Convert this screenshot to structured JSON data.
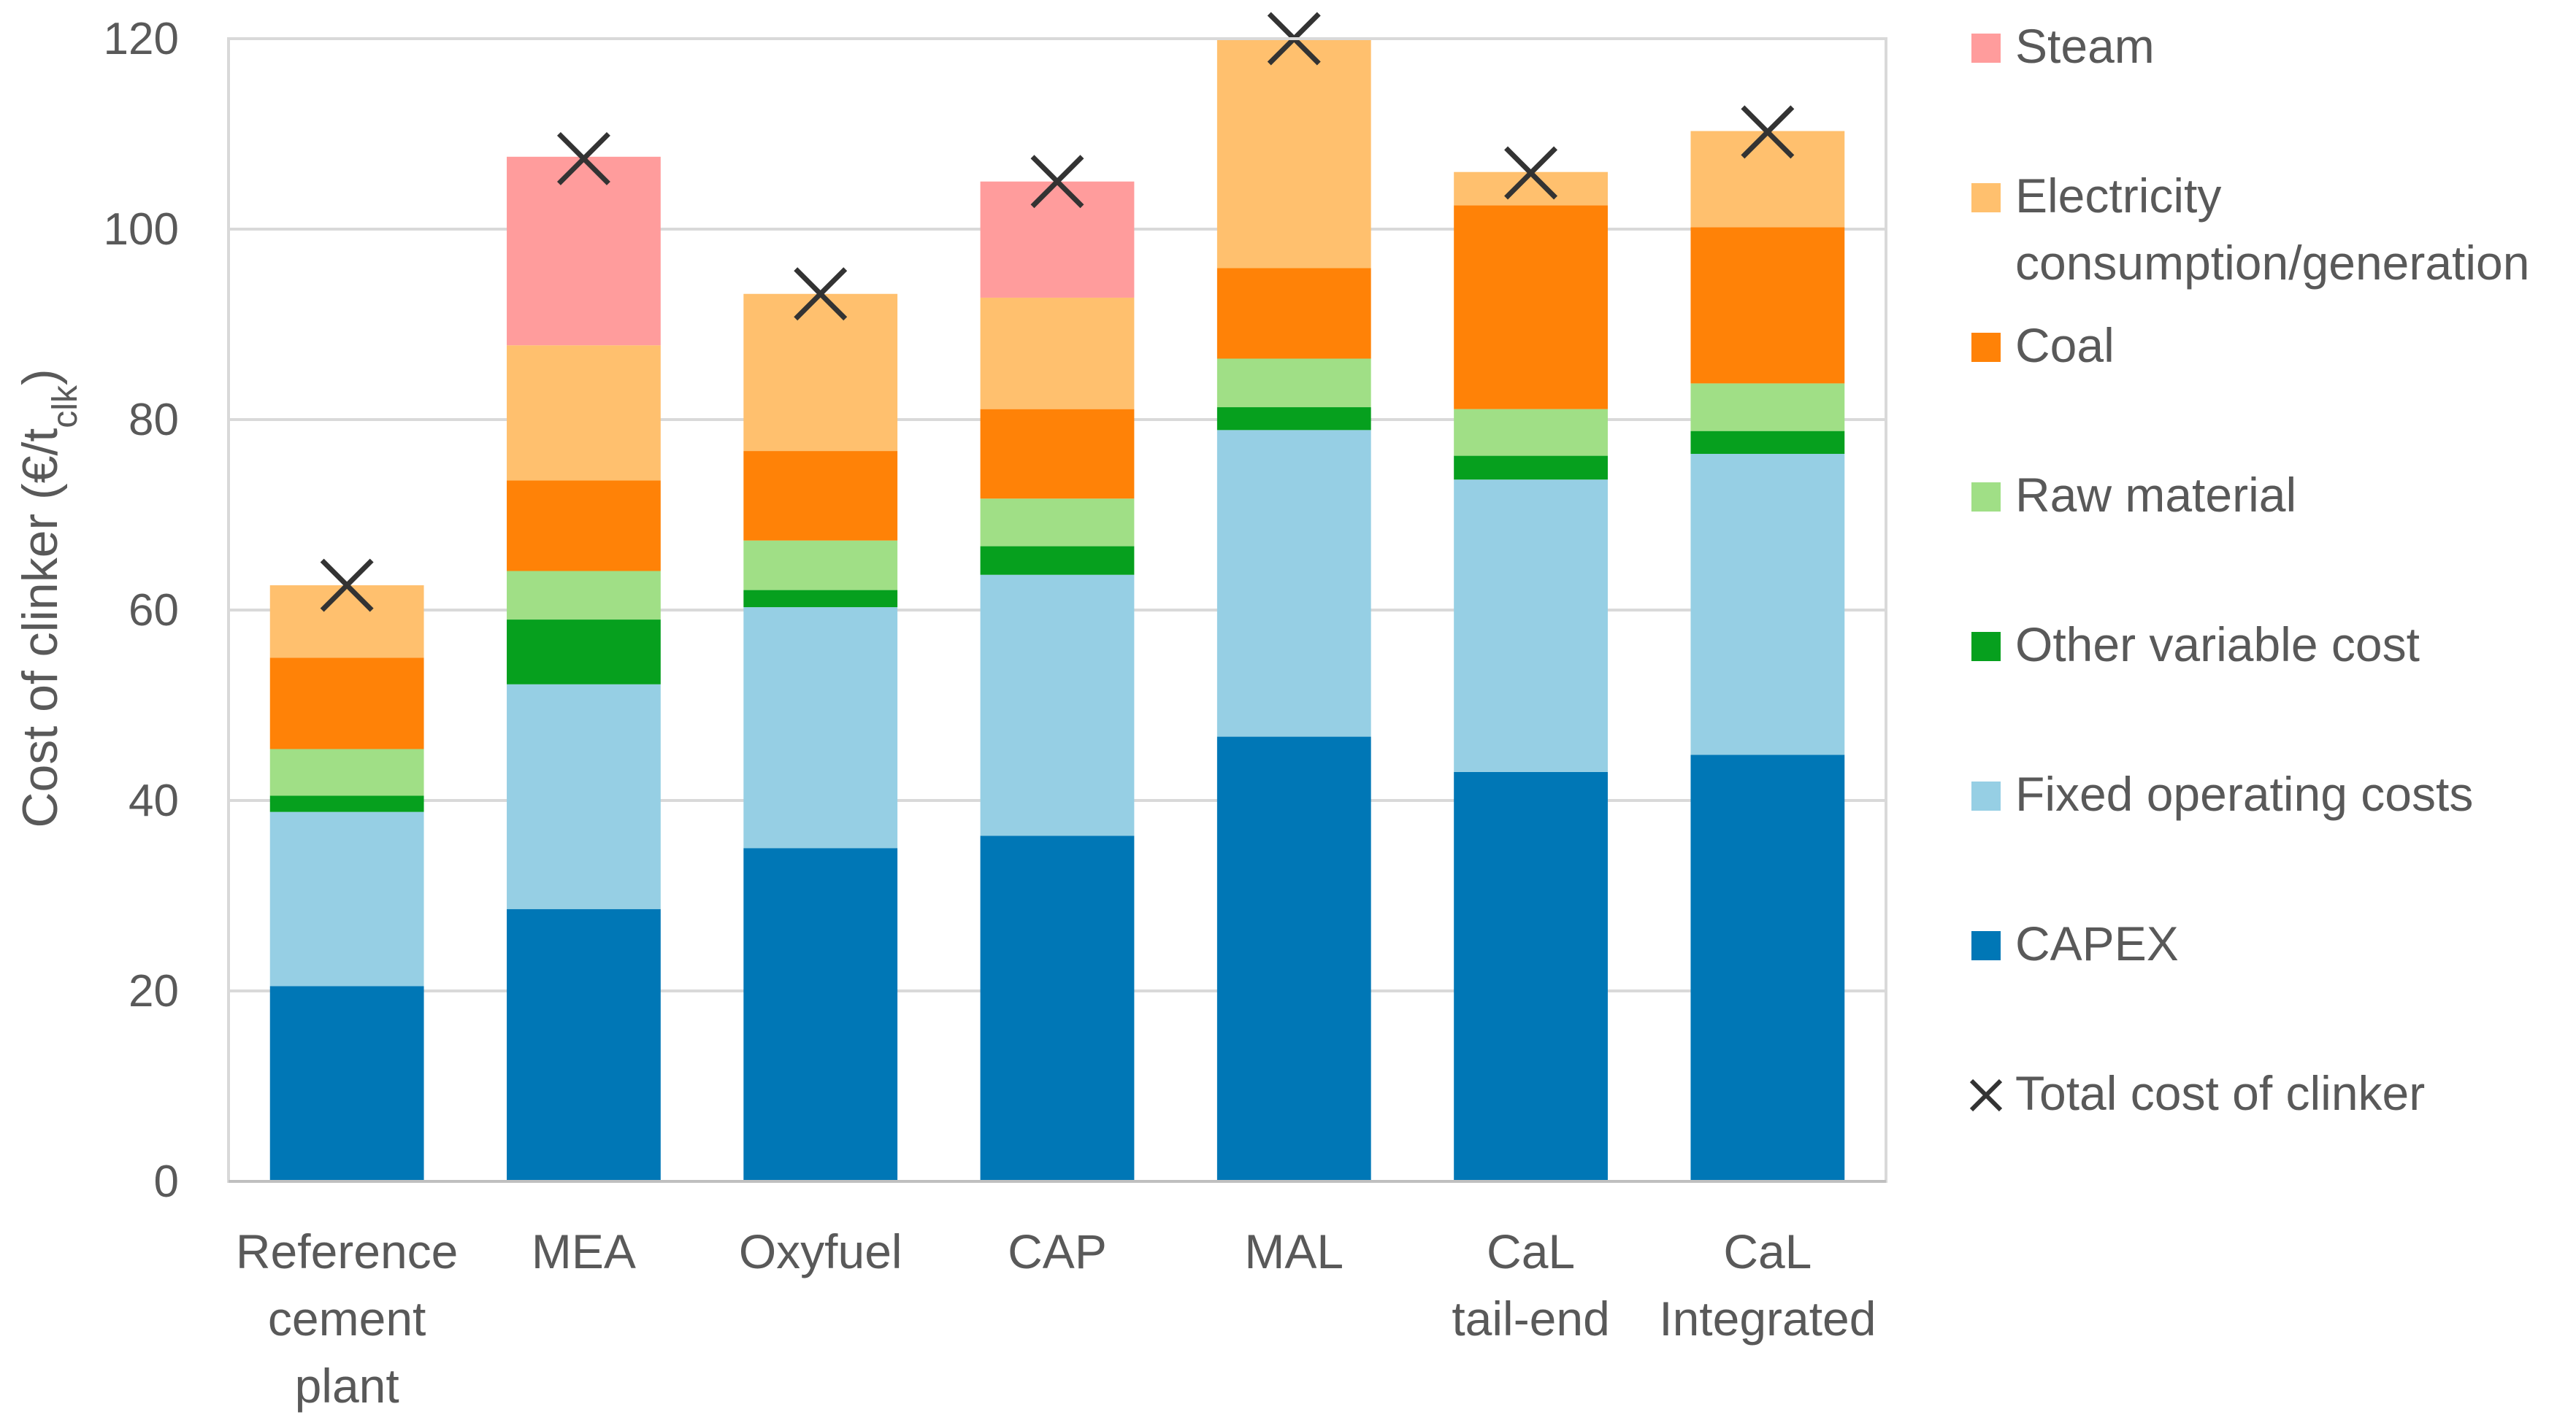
{
  "chart_data": {
    "type": "bar",
    "stacked": true,
    "title": "",
    "xlabel": "",
    "ylabel": {
      "main": "Cost of clinker (€/t",
      "sub": "clk",
      "close": ")"
    },
    "ylim": [
      0,
      120
    ],
    "yticks": [
      0,
      20,
      40,
      60,
      80,
      100,
      120
    ],
    "grid": true,
    "legend_position": "right",
    "categories": [
      [
        "Reference",
        "cement",
        "plant"
      ],
      [
        "MEA"
      ],
      [
        "Oxyfuel"
      ],
      [
        "CAP"
      ],
      [
        "MAL"
      ],
      [
        "CaL",
        "tail-end"
      ],
      [
        "CaL",
        "Integrated"
      ]
    ],
    "series": [
      {
        "name": "CAPEX",
        "color": "#0077B6",
        "values": [
          20.5,
          28.6,
          35.0,
          36.3,
          46.7,
          43.0,
          44.8
        ]
      },
      {
        "name": "Fixed operating costs",
        "color": "#96CFE4",
        "values": [
          18.3,
          23.6,
          25.3,
          27.4,
          32.2,
          30.7,
          31.6
        ]
      },
      {
        "name": "Other variable cost",
        "color": "#06A01E",
        "values": [
          1.7,
          6.8,
          1.8,
          3.0,
          2.4,
          2.5,
          2.4
        ]
      },
      {
        "name": "Raw material",
        "color": "#A0DF86",
        "values": [
          4.9,
          5.1,
          5.2,
          5.0,
          5.1,
          4.9,
          5.0
        ]
      },
      {
        "name": "Coal",
        "color": "#FF8207",
        "values": [
          9.6,
          9.5,
          9.4,
          9.4,
          9.5,
          21.4,
          16.4
        ]
      },
      {
        "name": "Electricity consumption/generation",
        "legend_lines": [
          "Electricity",
          "consumption/generation"
        ],
        "color": "#FFC06E",
        "values": [
          7.6,
          14.2,
          16.5,
          11.7,
          24.2,
          3.5,
          10.1
        ]
      },
      {
        "name": "Steam",
        "color": "#FF9C9C",
        "values": [
          0,
          19.8,
          0,
          12.2,
          0,
          0,
          0
        ]
      }
    ],
    "total": {
      "name": "Total cost of clinker",
      "marker": "x",
      "color": "#333333",
      "values": [
        62.6,
        107.4,
        93.2,
        105.0,
        120.0,
        105.9,
        110.2
      ]
    },
    "legend_order": [
      "Steam",
      "Electricity consumption/generation",
      "Coal",
      "Raw material",
      "Other variable cost",
      "Fixed operating costs",
      "CAPEX",
      "Total cost of clinker"
    ]
  }
}
